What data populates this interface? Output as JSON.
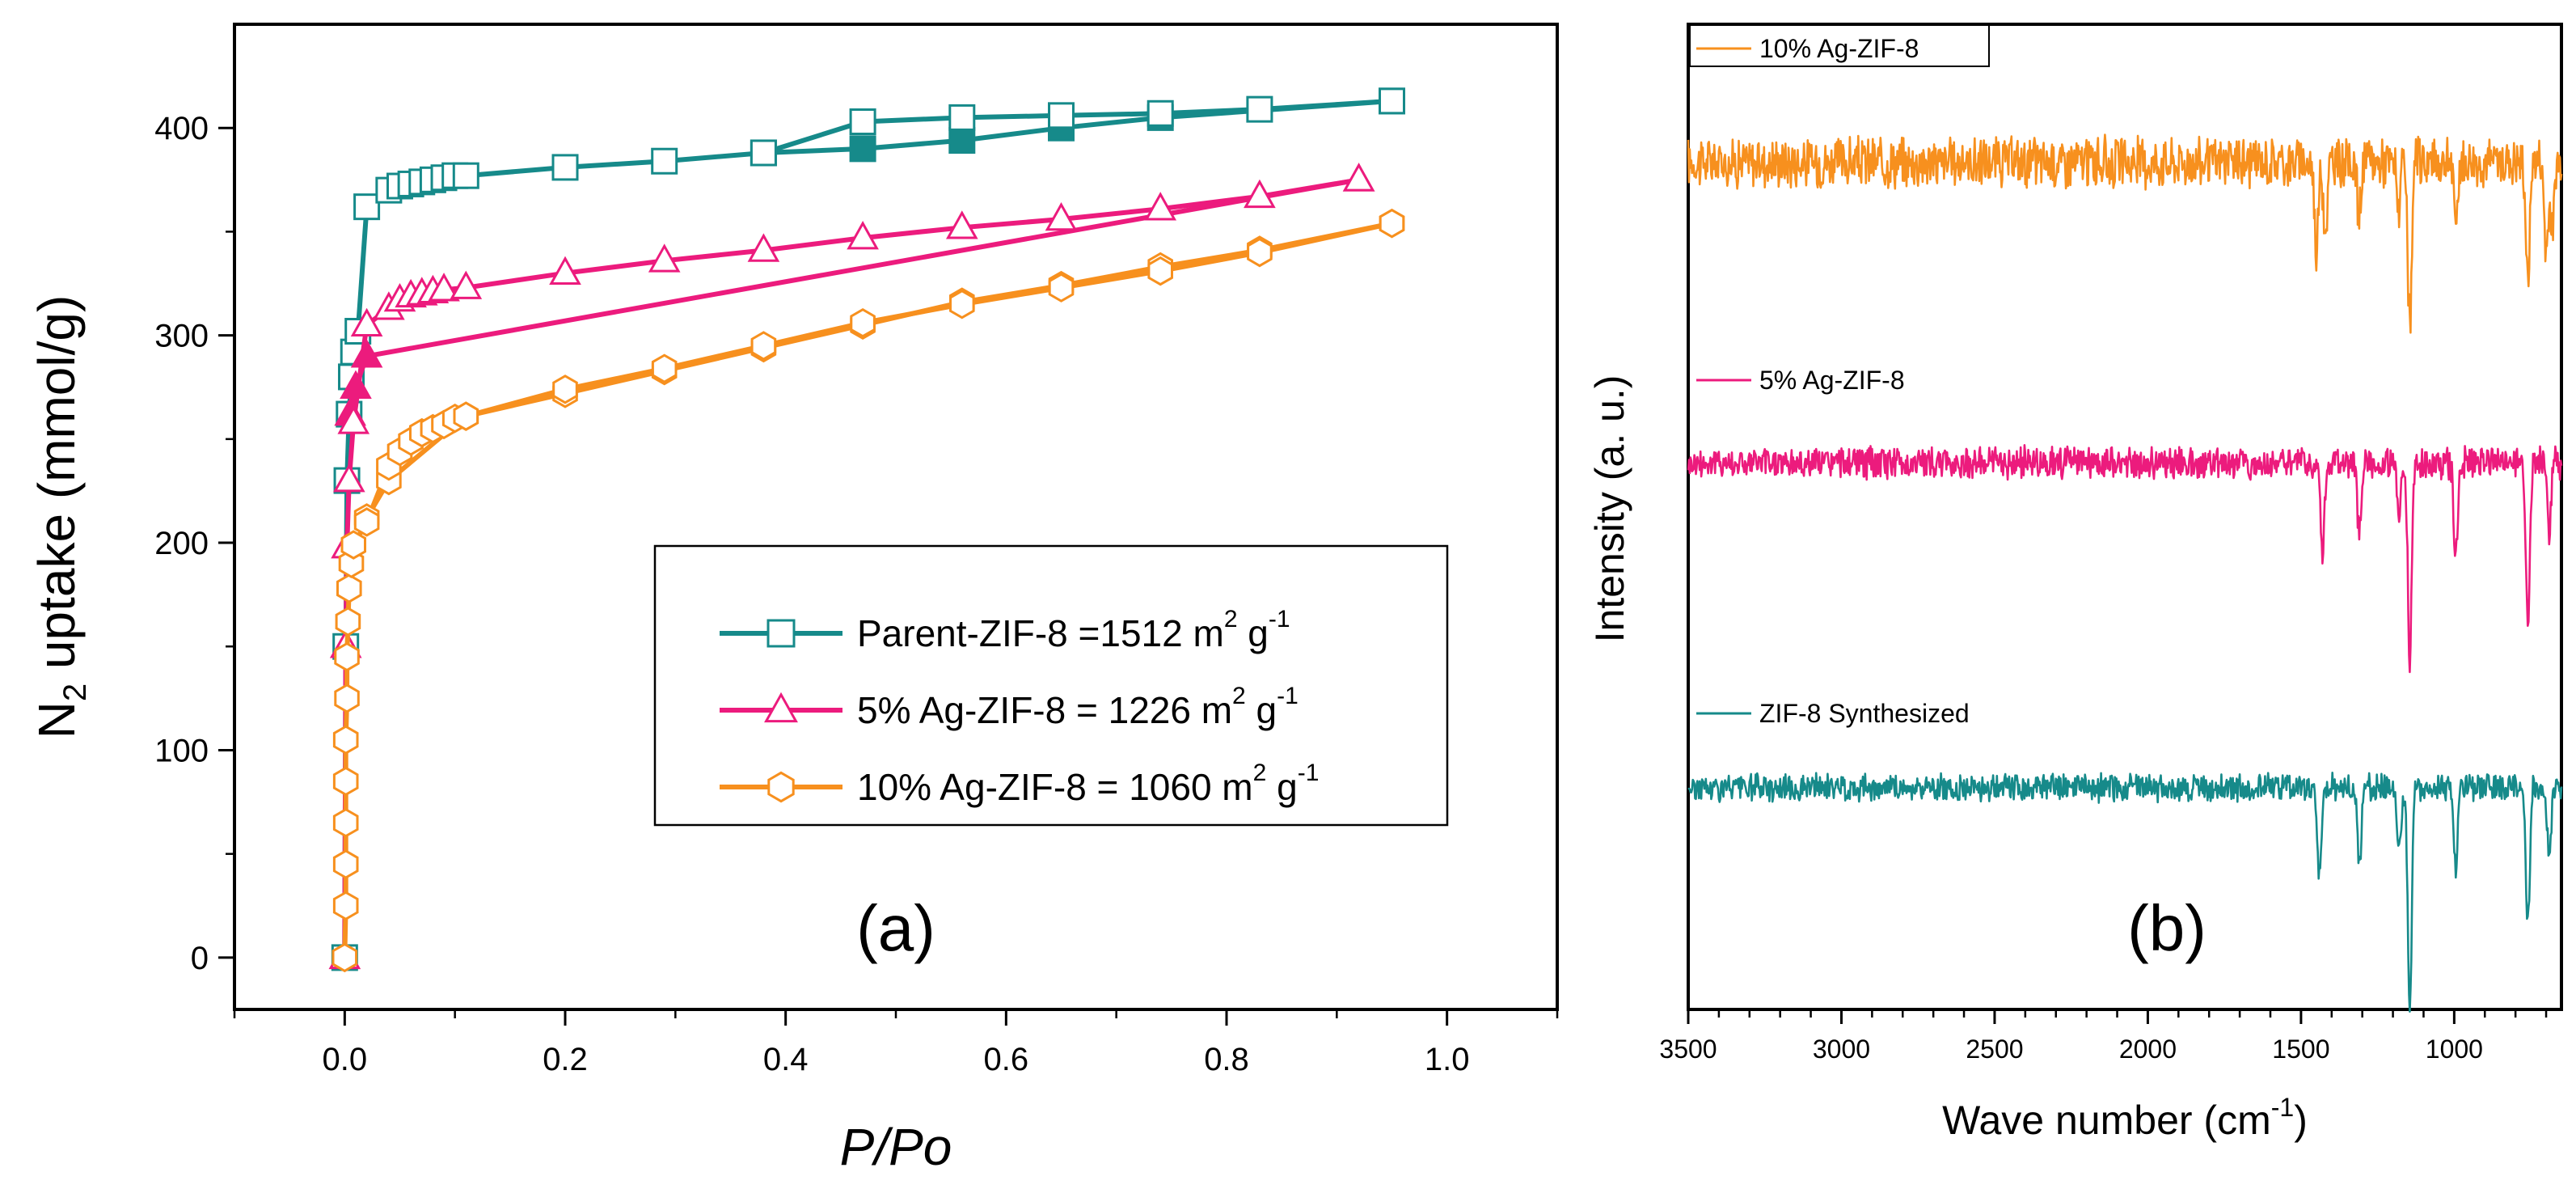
{
  "colors": {
    "parent": "#168a8a",
    "ag5": "#ec1b7d",
    "ag10": "#f7901e",
    "axis": "#000000"
  },
  "chart_data": [
    {
      "panel": "(a)",
      "type": "line",
      "xlabel": "P/Po",
      "ylabel_prefix": "N",
      "ylabel_sub": "2",
      "ylabel_rest": " uptake (mmol/g)",
      "xlim": [
        -0.1,
        1.1
      ],
      "ylim": [
        -25,
        450
      ],
      "x_ticks": [
        0.0,
        0.2,
        0.4,
        0.6,
        0.8,
        1.0
      ],
      "x_tick_labels": [
        "0.0",
        "0.2",
        "0.4",
        "0.6",
        "0.8",
        "1.0"
      ],
      "y_ticks": [
        0,
        100,
        200,
        300,
        400
      ],
      "y_tick_labels": [
        "0",
        "100",
        "200",
        "300",
        "400"
      ],
      "legend": {
        "placement": "lower-right",
        "entries": [
          {
            "name": "Parent-ZIF-8 =1512 m",
            "sup1": "2",
            "mid": " g",
            "sup2": "-1"
          },
          {
            "name": "5% Ag-ZIF-8 = 1226 m",
            "sup1": "2",
            "mid": " g",
            "sup2": "-1"
          },
          {
            "name": "10% Ag-ZIF-8 = 1060 m",
            "sup1": "2",
            "mid": " g",
            "sup2": "-1"
          }
        ]
      },
      "series": [
        {
          "name": "Parent-ZIF-8",
          "marker": "square",
          "adsorption": [
            [
              0.0,
              0
            ],
            [
              0.001,
              150
            ],
            [
              0.002,
              230
            ],
            [
              0.004,
              262
            ],
            [
              0.006,
              280
            ],
            [
              0.008,
              292
            ],
            [
              0.012,
              302
            ],
            [
              0.02,
              362
            ],
            [
              0.04,
              370
            ],
            [
              0.05,
              372
            ],
            [
              0.06,
              373
            ],
            [
              0.07,
              374
            ],
            [
              0.08,
              375
            ],
            [
              0.09,
              376
            ],
            [
              0.1,
              377
            ],
            [
              0.11,
              377
            ],
            [
              0.2,
              381
            ],
            [
              0.29,
              384
            ],
            [
              0.38,
              388
            ],
            [
              0.47,
              403
            ],
            [
              0.56,
              405
            ],
            [
              0.65,
              406
            ],
            [
              0.74,
              407
            ],
            [
              0.83,
              409
            ],
            [
              0.95,
              413
            ]
          ],
          "desorption": [
            [
              0.95,
              413
            ],
            [
              0.74,
              405
            ],
            [
              0.65,
              400
            ],
            [
              0.56,
              394
            ],
            [
              0.47,
              390
            ],
            [
              0.38,
              388
            ]
          ]
        },
        {
          "name": "5% Ag-ZIF-8",
          "marker": "triangle",
          "adsorption": [
            [
              0.0,
              0
            ],
            [
              0.001,
              150
            ],
            [
              0.002,
              198
            ],
            [
              0.004,
              230
            ],
            [
              0.008,
              258
            ],
            [
              0.02,
              305
            ],
            [
              0.04,
              313
            ],
            [
              0.05,
              317
            ],
            [
              0.06,
              319
            ],
            [
              0.07,
              320
            ],
            [
              0.08,
              321
            ],
            [
              0.09,
              322
            ],
            [
              0.11,
              323
            ],
            [
              0.2,
              330
            ],
            [
              0.29,
              336
            ],
            [
              0.38,
              341
            ],
            [
              0.47,
              347
            ],
            [
              0.56,
              352
            ],
            [
              0.65,
              356
            ],
            [
              0.74,
              361
            ],
            [
              0.83,
              367
            ],
            [
              0.92,
              375
            ]
          ],
          "desorption": [
            [
              0.92,
              375
            ],
            [
              0.02,
              290
            ],
            [
              0.01,
              275
            ],
            [
              0.005,
              262
            ]
          ]
        },
        {
          "name": "10% Ag-ZIF-8",
          "marker": "hexagon",
          "adsorption": [
            [
              0.0,
              0
            ],
            [
              0.001,
              25
            ],
            [
              0.001,
              45
            ],
            [
              0.001,
              65
            ],
            [
              0.001,
              85
            ],
            [
              0.001,
              105
            ],
            [
              0.002,
              125
            ],
            [
              0.002,
              145
            ],
            [
              0.003,
              162
            ],
            [
              0.004,
              178
            ],
            [
              0.006,
              190
            ],
            [
              0.008,
              199
            ],
            [
              0.02,
              210
            ],
            [
              0.04,
              237
            ],
            [
              0.05,
              244
            ],
            [
              0.06,
              249
            ],
            [
              0.07,
              253
            ],
            [
              0.08,
              255
            ],
            [
              0.09,
              257
            ],
            [
              0.1,
              260
            ],
            [
              0.11,
              261
            ],
            [
              0.2,
              274
            ],
            [
              0.29,
              284
            ],
            [
              0.38,
              295
            ],
            [
              0.47,
              306
            ],
            [
              0.56,
              315
            ],
            [
              0.65,
              323
            ],
            [
              0.74,
              331
            ],
            [
              0.83,
              340
            ],
            [
              0.95,
              354
            ]
          ],
          "desorption": [
            [
              0.95,
              354
            ],
            [
              0.83,
              341
            ],
            [
              0.74,
              333
            ],
            [
              0.65,
              324
            ],
            [
              0.56,
              316
            ],
            [
              0.47,
              305
            ],
            [
              0.38,
              294
            ],
            [
              0.29,
              283
            ],
            [
              0.2,
              272
            ],
            [
              0.11,
              261
            ],
            [
              0.04,
              230
            ],
            [
              0.02,
              212
            ]
          ]
        }
      ]
    },
    {
      "panel": "(b)",
      "type": "line",
      "xlabel_prefix": "Wave number (cm",
      "xlabel_sup": "-1",
      "xlabel_suffix": ")",
      "ylabel": "Intensity (a. u.)",
      "xlim": [
        3500,
        650
      ],
      "x_ticks": [
        3500,
        3000,
        2500,
        2000,
        1500,
        1000
      ],
      "x_tick_labels": [
        "3500",
        "3000",
        "2500",
        "2000",
        "1500",
        "1000"
      ],
      "y_unit": "a. u. (stacked offsets, baseline 0-1000)",
      "ylim": [
        0,
        1000
      ],
      "series": [
        {
          "name": "10% Ag-ZIF-8",
          "baseline": 860,
          "noise": 22,
          "peaks": [
            [
              1450,
              85
            ],
            [
              1420,
              70
            ],
            [
              1310,
              55
            ],
            [
              1180,
              45
            ],
            [
              1145,
              175
            ],
            [
              995,
              60
            ],
            [
              760,
              120
            ],
            [
              700,
              90
            ],
            [
              680,
              70
            ]
          ]
        },
        {
          "name": "5% Ag-ZIF-8",
          "baseline": 555,
          "noise": 14,
          "peaks": [
            [
              1430,
              95
            ],
            [
              1310,
              70
            ],
            [
              1180,
              55
            ],
            [
              1145,
              200
            ],
            [
              995,
              95
            ],
            [
              760,
              160
            ],
            [
              690,
              70
            ]
          ]
        },
        {
          "name": "ZIF-8 Synthesized",
          "baseline": 225,
          "noise": 12,
          "peaks": [
            [
              1440,
              90
            ],
            [
              1310,
              80
            ],
            [
              1180,
              60
            ],
            [
              1145,
              225
            ],
            [
              995,
              85
            ],
            [
              760,
              140
            ],
            [
              690,
              70
            ]
          ]
        }
      ]
    }
  ]
}
